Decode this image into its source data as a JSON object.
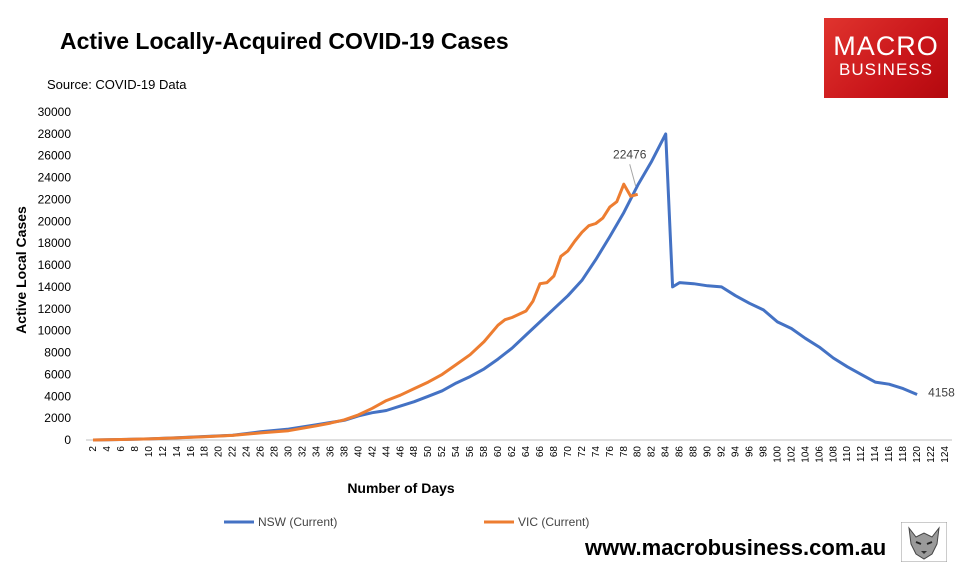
{
  "header": {
    "title": "Active Locally-Acquired COVID-19 Cases",
    "source": "Source: COVID-19 Data"
  },
  "logo": {
    "line1": "MACRO",
    "line2": "BUSINESS"
  },
  "footer": {
    "url": "www.macrobusiness.com.au"
  },
  "colors": {
    "nsw": "#4472c4",
    "vic": "#ed7d31",
    "axis": "#bfbfbf"
  },
  "chart_data": {
    "type": "line",
    "title": "Active Locally-Acquired COVID-19 Cases",
    "xlabel": "Number of Days",
    "ylabel": "Active Local Cases",
    "xlim": [
      1,
      125
    ],
    "ylim": [
      0,
      30000
    ],
    "y_ticks": [
      0,
      2000,
      4000,
      6000,
      8000,
      10000,
      12000,
      14000,
      16000,
      18000,
      20000,
      22000,
      24000,
      26000,
      28000,
      30000
    ],
    "x_ticks": [
      2,
      4,
      6,
      8,
      10,
      12,
      14,
      16,
      18,
      20,
      22,
      24,
      26,
      28,
      30,
      32,
      34,
      36,
      38,
      40,
      42,
      44,
      46,
      48,
      50,
      52,
      54,
      56,
      58,
      60,
      62,
      64,
      66,
      68,
      70,
      72,
      74,
      76,
      78,
      80,
      82,
      84,
      86,
      88,
      90,
      92,
      94,
      96,
      98,
      100,
      102,
      104,
      106,
      108,
      110,
      112,
      114,
      116,
      118,
      120,
      122,
      124
    ],
    "grid": false,
    "legend_position": "bottom",
    "series": [
      {
        "name": "NSW (Current)",
        "color_key": "nsw",
        "x": [
          2,
          6,
          10,
          14,
          18,
          22,
          26,
          30,
          34,
          36,
          38,
          40,
          42,
          44,
          46,
          48,
          50,
          52,
          54,
          56,
          58,
          60,
          62,
          64,
          66,
          68,
          70,
          72,
          74,
          76,
          78,
          80,
          82,
          84,
          85,
          86,
          88,
          90,
          92,
          94,
          96,
          98,
          100,
          102,
          104,
          106,
          108,
          110,
          112,
          114,
          116,
          118,
          120
        ],
        "y": [
          0,
          50,
          100,
          200,
          320,
          430,
          750,
          1000,
          1400,
          1600,
          1800,
          2200,
          2500,
          2700,
          3100,
          3500,
          4000,
          4500,
          5200,
          5800,
          6500,
          7400,
          8400,
          9600,
          10800,
          12000,
          13200,
          14600,
          16500,
          18600,
          20800,
          23300,
          25500,
          28000,
          14000,
          14400,
          14300,
          14100,
          14000,
          13200,
          12500,
          11900,
          10800,
          10200,
          9300,
          8500,
          7500,
          6700,
          6000,
          5300,
          5100,
          4700,
          4158
        ],
        "end_label": "4158"
      },
      {
        "name": "VIC (Current)",
        "color_key": "vic",
        "x": [
          2,
          6,
          10,
          14,
          18,
          22,
          26,
          30,
          34,
          36,
          38,
          40,
          42,
          44,
          46,
          48,
          50,
          52,
          54,
          56,
          58,
          60,
          61,
          62,
          63,
          64,
          65,
          66,
          67,
          68,
          69,
          70,
          71,
          72,
          73,
          74,
          75,
          76,
          77,
          78,
          79,
          80
        ],
        "y": [
          0,
          50,
          100,
          190,
          300,
          420,
          650,
          850,
          1300,
          1550,
          1850,
          2300,
          2900,
          3600,
          4100,
          4700,
          5300,
          6000,
          6900,
          7800,
          9000,
          10500,
          11000,
          11200,
          11500,
          11800,
          12700,
          14300,
          14400,
          15000,
          16800,
          17300,
          18200,
          19000,
          19600,
          19800,
          20300,
          21300,
          21800,
          23400,
          22300,
          22476
        ],
        "annotation": "22476"
      }
    ]
  }
}
